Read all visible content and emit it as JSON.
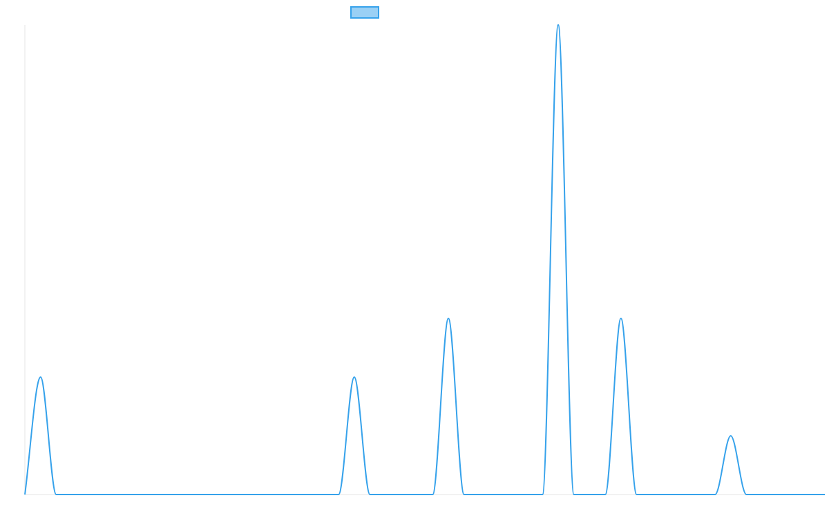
{
  "chart_data": {
    "type": "line",
    "title": "",
    "xlabel": "",
    "ylabel": "",
    "legend": {
      "placement": "top-center",
      "entries": [
        {
          "label": ""
        }
      ]
    },
    "grid": false,
    "axes_visible": false,
    "x": [
      0,
      1,
      2,
      3,
      4,
      5,
      6,
      7,
      8,
      9,
      10,
      11,
      12,
      13,
      14,
      15,
      16,
      17,
      18,
      19,
      20,
      21,
      22,
      23,
      24,
      25,
      26,
      27,
      28,
      29,
      30,
      31,
      32,
      33,
      34,
      35,
      36,
      37,
      38,
      39,
      40,
      41,
      42,
      43,
      44,
      45,
      46,
      47,
      48,
      49,
      50,
      51
    ],
    "xlim": [
      0,
      51
    ],
    "ylim": [
      0,
      8
    ],
    "series": [
      {
        "color": "#36a2eb",
        "fill": "rgba(54,162,235,0.5)",
        "values": [
          0,
          2,
          0,
          0,
          0,
          0,
          0,
          0,
          0,
          0,
          0,
          0,
          0,
          0,
          0,
          0,
          0,
          0,
          0,
          0,
          0,
          2,
          0,
          0,
          0,
          0,
          0,
          3,
          0,
          0,
          0,
          0,
          0,
          0,
          8,
          0,
          0,
          0,
          3,
          0,
          0,
          0,
          0,
          0,
          0,
          1,
          0,
          0,
          0,
          0,
          0,
          0
        ]
      }
    ]
  }
}
